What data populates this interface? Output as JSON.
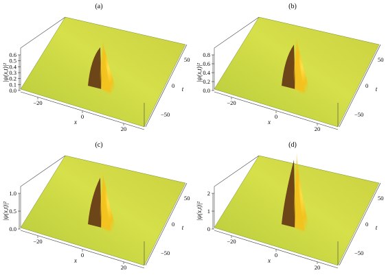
{
  "panels": [
    {
      "label": "(a)",
      "z_axis_title": "|ψ(x,t)|²",
      "z_ticks": [
        "0.0",
        "0.1",
        "0.2",
        "0.3",
        "0.4",
        "0.5",
        "0.6"
      ],
      "x_axis_title": "x",
      "x_ticks": [
        "−20",
        "0",
        "20"
      ],
      "t_axis_title": "t",
      "t_ticks": [
        "50",
        "0",
        "−50"
      ],
      "peak_level": 0.7
    },
    {
      "label": "(b)",
      "z_axis_title": "|ψ(x,t)|²",
      "z_ticks": [
        "0.0",
        "0.2",
        "0.4",
        "0.6",
        "0.8"
      ],
      "x_axis_title": "x",
      "x_ticks": [
        "−20",
        "0",
        "20"
      ],
      "t_axis_title": "t",
      "t_ticks": [
        "50",
        "0",
        "−50"
      ],
      "peak_level": 0.9
    },
    {
      "label": "(c)",
      "z_axis_title": "|ψ(x,t)|²",
      "z_ticks": [
        "0.0",
        "0.5",
        "1.0"
      ],
      "x_axis_title": "x",
      "x_ticks": [
        "−20",
        "0",
        "20"
      ],
      "t_axis_title": "t",
      "t_ticks": [
        "50",
        "0",
        "−50"
      ],
      "peak_level": 1.3
    },
    {
      "label": "(d)",
      "z_axis_title": "|ψ(x,t)|²",
      "z_ticks": [
        "0",
        "1",
        "2"
      ],
      "x_axis_title": "x",
      "x_ticks": [
        "−20",
        "0",
        "20"
      ],
      "t_axis_title": "t",
      "t_ticks": [
        "50",
        "0",
        "−50"
      ],
      "peak_level": 2.6
    }
  ],
  "colors": {
    "surface_base": "#b5c93a",
    "surface_light": "#d6e04a",
    "peak": "#f3c21e",
    "shadow": "#5a2a10"
  }
}
